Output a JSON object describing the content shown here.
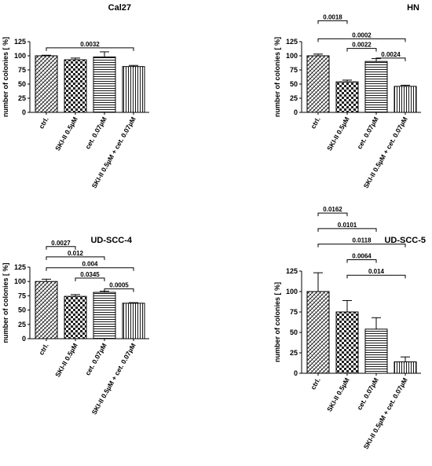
{
  "colors": {
    "ink": "#000000",
    "bar_fill": "#ffffff"
  },
  "chart_data": [
    {
      "type": "bar",
      "title": "Cal27",
      "ylabel": "number of colonies [ %]",
      "ylim": [
        0,
        125
      ],
      "yticks": [
        0,
        25,
        50,
        75,
        100,
        125
      ],
      "categories": [
        "ctrl.",
        "SKI-II 0.5µM",
        "cet. 0.07µM",
        "SKI-II 0.5µM + cet. 0.07µM"
      ],
      "values": [
        100,
        93,
        98,
        81
      ],
      "errors": [
        1,
        3,
        9,
        2
      ],
      "patterns": [
        "diag",
        "checker",
        "hlines",
        "vlines"
      ],
      "comparisons": [
        {
          "a": 0,
          "b": 3,
          "p": "0.0032",
          "y": 114
        }
      ]
    },
    {
      "type": "bar",
      "title": "HN",
      "ylabel": "number of colonies [ %]",
      "ylim": [
        0,
        125
      ],
      "yticks": [
        0,
        25,
        50,
        75,
        100,
        125
      ],
      "categories": [
        "ctrl.",
        "SKI-II 0.5µM",
        "cet. 0.07µM",
        "SKI-II 0.5µM + cet. 0.07µM"
      ],
      "values": [
        100,
        54,
        90,
        46
      ],
      "errors": [
        3,
        3,
        5,
        2
      ],
      "patterns": [
        "diag",
        "checker",
        "hlines",
        "vlines"
      ],
      "comparisons": [
        {
          "a": 0,
          "b": 1,
          "p": "0.0018",
          "y": 162
        },
        {
          "a": 0,
          "b": 3,
          "p": "0.0002",
          "y": 130
        },
        {
          "a": 1,
          "b": 2,
          "p": "0.0022",
          "y": 113
        },
        {
          "a": 2,
          "b": 3,
          "p": "0.0024",
          "y": 96
        }
      ]
    },
    {
      "type": "bar",
      "title": "UD-SCC-4",
      "ylabel": "number of colonies [ %]",
      "ylim": [
        0,
        125
      ],
      "yticks": [
        0,
        25,
        50,
        75,
        100,
        125
      ],
      "categories": [
        "ctrl.",
        "SKI-II 0.5µM",
        "cet. 0.07µM",
        "SKI-II 0.5µM + cet. 0.07µM"
      ],
      "values": [
        100,
        74,
        81,
        62
      ],
      "errors": [
        4,
        3,
        2,
        1
      ],
      "patterns": [
        "diag",
        "checker",
        "hlines",
        "vlines"
      ],
      "comparisons": [
        {
          "a": 0,
          "b": 1,
          "p": "0.0027",
          "y": 161
        },
        {
          "a": 0,
          "b": 2,
          "p": "0.012",
          "y": 143
        },
        {
          "a": 0,
          "b": 3,
          "p": "0.004",
          "y": 124
        },
        {
          "a": 1,
          "b": 2,
          "p": "0.0345",
          "y": 106
        },
        {
          "a": 2,
          "b": 3,
          "p": "0.0005",
          "y": 87
        }
      ]
    },
    {
      "type": "bar",
      "title": "UD-SCC-5",
      "ylabel": "number of colonies [ %]",
      "ylim": [
        0,
        125
      ],
      "yticks": [
        0,
        25,
        50,
        75,
        100,
        125
      ],
      "categories": [
        "ctrl.",
        "SKI-II 0.5µM",
        "cet. 0.07µM",
        "SKI-II 0.5µM + cet. 0.07µM"
      ],
      "values": [
        100,
        75,
        54,
        14
      ],
      "errors": [
        23,
        14,
        14,
        6
      ],
      "patterns": [
        "diag",
        "checker",
        "hlines",
        "vlines"
      ],
      "comparisons": [
        {
          "a": 0,
          "b": 1,
          "p": "0.0162",
          "y": 196
        },
        {
          "a": 0,
          "b": 2,
          "p": "0.0101",
          "y": 177
        },
        {
          "a": 0,
          "b": 3,
          "p": "0.0118",
          "y": 158
        },
        {
          "a": 1,
          "b": 2,
          "p": "0.0064",
          "y": 139
        },
        {
          "a": 1,
          "b": 3,
          "p": "0.014",
          "y": 120
        }
      ]
    }
  ]
}
